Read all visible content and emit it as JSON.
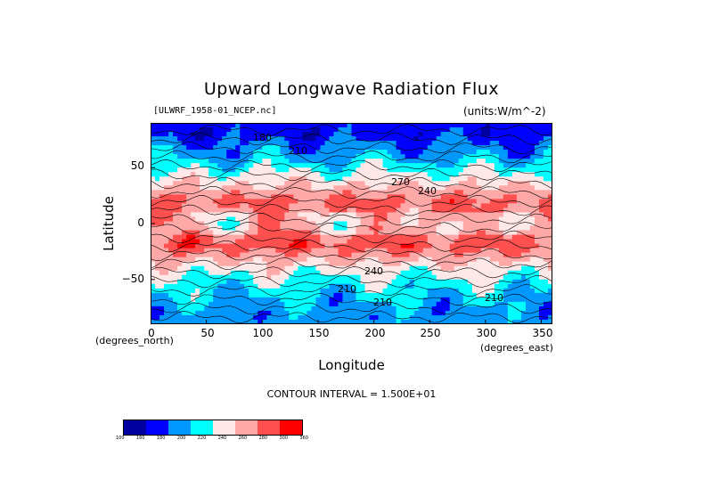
{
  "title": "Upward Longwave Radiation Flux",
  "file_label": "[ULWRF_1958-01_NCEP.nc]",
  "units_label": "(units:W/m^-2)",
  "y_axis_label": "Latitude",
  "y_axis_note": "(degrees_north)",
  "x_axis_label": "Longitude",
  "x_axis_note": "(degrees_east)",
  "contour_interval": "CONTOUR INTERVAL = 1.500E+01",
  "y_ticks": [
    "50",
    "0",
    "−50"
  ],
  "x_ticks": [
    "0",
    "50",
    "100",
    "150",
    "200",
    "250",
    "300",
    "350"
  ],
  "contour_labels": [
    "210",
    "240",
    "270",
    "180",
    "210",
    "210",
    "240",
    "210"
  ],
  "legend": {
    "colors": [
      "#0000a0",
      "#0000ff",
      "#0098ff",
      "#00ffff",
      "#ffe8e8",
      "#ffa8a8",
      "#ff5050",
      "#ff0000"
    ],
    "ticks": [
      "100",
      "160",
      "180",
      "200",
      "220",
      "240",
      "260",
      "280",
      "300",
      "360"
    ]
  },
  "chart_data": {
    "type": "heatmap",
    "title": "Upward Longwave Radiation Flux",
    "xlabel": "Longitude",
    "ylabel": "Latitude",
    "xlim": [
      0,
      360
    ],
    "ylim": [
      -90,
      90
    ],
    "x_ticks": [
      0,
      50,
      100,
      150,
      200,
      250,
      300,
      350
    ],
    "y_ticks": [
      -50,
      0,
      50
    ],
    "color_levels": [
      100,
      160,
      180,
      200,
      220,
      240,
      260,
      280,
      300,
      360
    ],
    "contour_interval": 15,
    "latitude_bands_approx": [
      {
        "lat": 80,
        "value": 170
      },
      {
        "lat": 60,
        "value": 195
      },
      {
        "lat": 40,
        "value": 230
      },
      {
        "lat": 20,
        "value": 265
      },
      {
        "lat": 0,
        "value": 250
      },
      {
        "lat": -20,
        "value": 270
      },
      {
        "lat": -40,
        "value": 230
      },
      {
        "lat": -60,
        "value": 205
      },
      {
        "lat": -80,
        "value": 190
      }
    ]
  }
}
